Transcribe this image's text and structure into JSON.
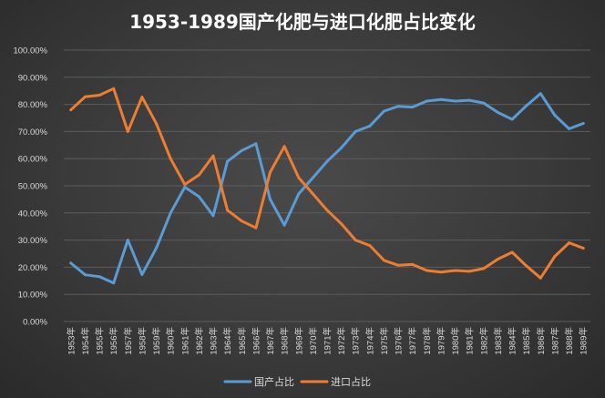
{
  "chart_data": {
    "type": "line",
    "title": "1953-1989国产化肥与进口化肥占比变化",
    "xlabel": "",
    "ylabel": "",
    "ylim": [
      0,
      100
    ],
    "y_ticks": [
      "0.00%",
      "10.00%",
      "20.00%",
      "30.00%",
      "40.00%",
      "50.00%",
      "60.00%",
      "70.00%",
      "80.00%",
      "90.00%",
      "100.00%"
    ],
    "x": [
      "1953年",
      "1954年",
      "1955年",
      "1956年",
      "1957年",
      "1958年",
      "1959年",
      "1960年",
      "1961年",
      "1962年",
      "1963年",
      "1964年",
      "1965年",
      "1966年",
      "1967年",
      "1968年",
      "1969年",
      "1970年",
      "1971年",
      "1972年",
      "1973年",
      "1974年",
      "1975年",
      "1976年",
      "1977年",
      "1978年",
      "1979年",
      "1980年",
      "1981年",
      "1982年",
      "1983年",
      "1984年",
      "1985年",
      "1986年",
      "1987年",
      "1988年",
      "1989年"
    ],
    "series": [
      {
        "name": "国产占比",
        "color": "#5b9bd5",
        "values": [
          21.5,
          17.2,
          16.5,
          14.2,
          30.0,
          17.3,
          27.0,
          40.0,
          49.5,
          46.0,
          39.0,
          59.0,
          63.0,
          65.5,
          45.0,
          35.5,
          47.0,
          53.0,
          59.0,
          64.0,
          70.0,
          72.0,
          77.5,
          79.3,
          79.0,
          81.2,
          81.8,
          81.2,
          81.5,
          80.5,
          77.0,
          74.5,
          79.5,
          84.0,
          76.0,
          71.0,
          73.0
        ]
      },
      {
        "name": "进口占比",
        "color": "#ed7d31",
        "values": [
          78.0,
          82.8,
          83.4,
          85.8,
          70.0,
          82.7,
          73.0,
          60.0,
          50.5,
          54.0,
          61.0,
          41.0,
          37.0,
          34.5,
          55.0,
          64.5,
          53.0,
          47.0,
          41.0,
          36.0,
          30.0,
          28.0,
          22.5,
          20.7,
          21.0,
          18.8,
          18.2,
          18.8,
          18.5,
          19.5,
          23.0,
          25.5,
          20.5,
          16.0,
          24.0,
          29.0,
          27.0
        ]
      }
    ],
    "legend_position": "bottom",
    "grid": true
  }
}
